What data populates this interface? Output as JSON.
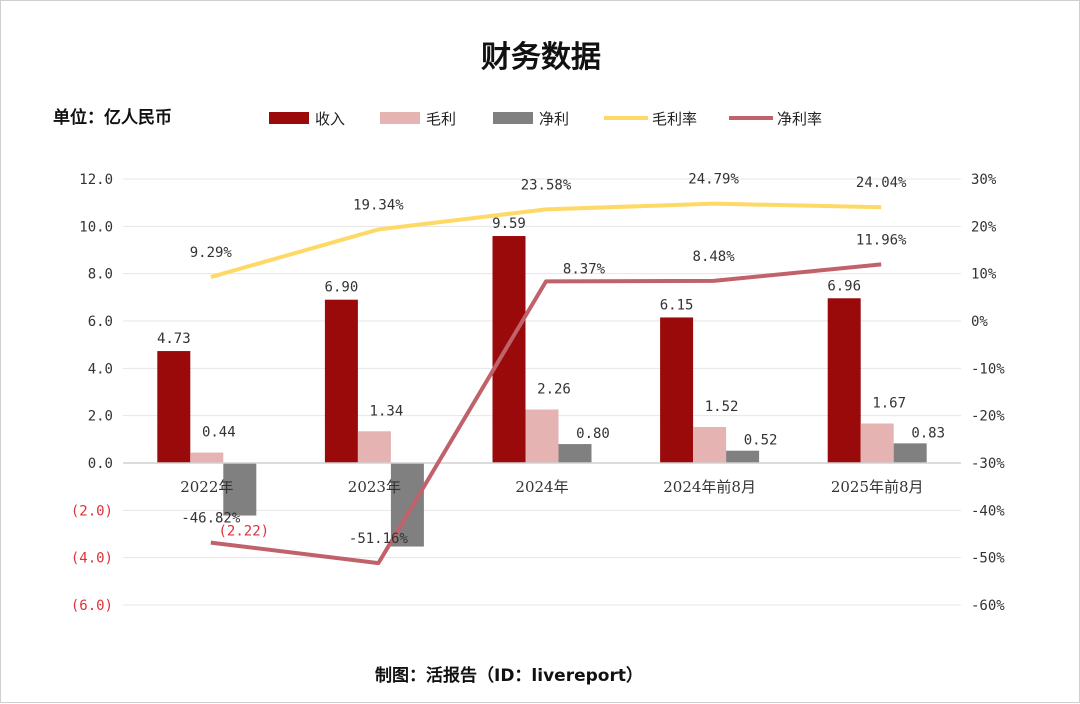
{
  "title": "财务数据",
  "unit_label": "单位：亿人民币",
  "footer": "制图：活报告（ID：livereport）",
  "colors": {
    "revenue": "#9b0a0a",
    "gross": "#e6b3b3",
    "net": "#808080",
    "gross_margin": "#ffd966",
    "net_margin": "#c0626a",
    "negative_text": "#e0303a"
  },
  "chart_data": {
    "type": "bar",
    "categories": [
      "2022年",
      "2023年",
      "2024年",
      "2024年前8月",
      "2025年前8月"
    ],
    "series": [
      {
        "name": "收入",
        "type": "bar",
        "axis": "left",
        "values": [
          4.73,
          6.9,
          9.59,
          6.15,
          6.96
        ],
        "labels": [
          "4.73",
          "6.90",
          "9.59",
          "6.15",
          "6.96"
        ]
      },
      {
        "name": "毛利",
        "type": "bar",
        "axis": "left",
        "values": [
          0.44,
          1.34,
          2.26,
          1.52,
          1.67
        ],
        "labels": [
          "0.44",
          "1.34",
          "2.26",
          "1.52",
          "1.67"
        ]
      },
      {
        "name": "净利",
        "type": "bar",
        "axis": "left",
        "values": [
          -2.22,
          -3.53,
          0.8,
          0.52,
          0.83
        ],
        "labels": [
          "(2.22)",
          "",
          "0.80",
          "0.52",
          "0.83"
        ]
      },
      {
        "name": "毛利率",
        "type": "line",
        "axis": "right",
        "values": [
          9.29,
          19.34,
          23.58,
          24.79,
          24.04
        ],
        "labels": [
          "9.29%",
          "19.34%",
          "23.58%",
          "24.79%",
          "24.04%"
        ]
      },
      {
        "name": "净利率",
        "type": "line",
        "axis": "right",
        "values": [
          -46.82,
          -51.16,
          8.37,
          8.48,
          11.96
        ],
        "labels": [
          "-46.82%",
          "-51.16%",
          "8.37%",
          "8.48%",
          "11.96%"
        ]
      }
    ],
    "y_left": {
      "min": -6,
      "max": 12,
      "ticks": [
        "(6.0)",
        "(4.0)",
        "(2.0)",
        "0.0",
        "2.0",
        "4.0",
        "6.0",
        "8.0",
        "10.0",
        "12.0"
      ],
      "tick_values": [
        -6,
        -4,
        -2,
        0,
        2,
        4,
        6,
        8,
        10,
        12
      ]
    },
    "y_right": {
      "min": -60,
      "max": 30,
      "ticks": [
        "-60%",
        "-50%",
        "-40%",
        "-30%",
        "-20%",
        "-10%",
        "0%",
        "10%",
        "20%",
        "30%"
      ],
      "tick_values": [
        -60,
        -50,
        -40,
        -30,
        -20,
        -10,
        0,
        10,
        20,
        30
      ]
    },
    "grid": true,
    "legend_position": "top"
  }
}
